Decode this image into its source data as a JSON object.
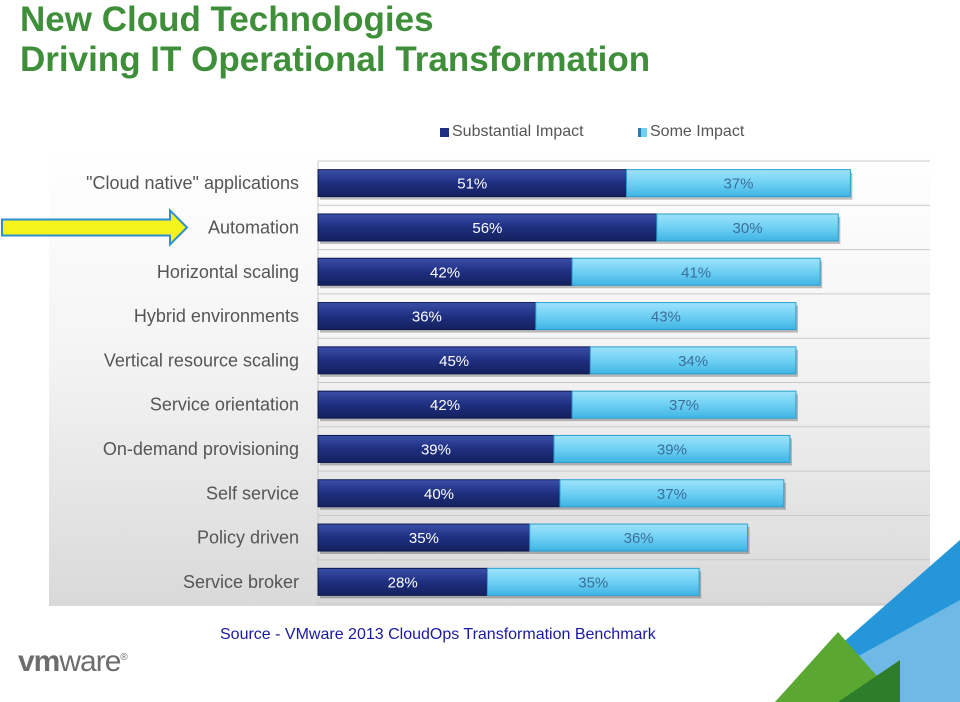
{
  "title": {
    "line1": "New Cloud Technologies",
    "line2": "Driving IT Operational Transformation"
  },
  "legend": {
    "substantial": "Substantial Impact",
    "some": "Some Impact"
  },
  "colors": {
    "title": "#3f8f3a",
    "substantial": "#1f2f80",
    "some": "#6fd0f4",
    "arrow": "#f4f31b",
    "arrow_border": "#2c8fd0",
    "grid": "#c9c9c9"
  },
  "source": "Source - VMware 2013 CloudOps Transformation Benchmark",
  "logo": "vmware",
  "chart_data": {
    "type": "bar",
    "orientation": "horizontal",
    "stacked": true,
    "categories": [
      "\"Cloud native\" applications",
      "Automation",
      "Horizontal scaling",
      "Hybrid environments",
      "Vertical resource scaling",
      "Service orientation",
      "On-demand provisioning",
      "Self service",
      "Policy driven",
      "Service broker"
    ],
    "series": [
      {
        "name": "Substantial Impact",
        "values": [
          51,
          56,
          42,
          36,
          45,
          42,
          39,
          40,
          35,
          28
        ],
        "labels": [
          "51%",
          "56%",
          "42%",
          "36%",
          "45%",
          "42%",
          "39%",
          "40%",
          "35%",
          "28%"
        ]
      },
      {
        "name": "Some Impact",
        "values": [
          37,
          30,
          41,
          43,
          34,
          37,
          39,
          37,
          36,
          35
        ],
        "labels": [
          "37%",
          "30%",
          "41%",
          "43%",
          "34%",
          "37%",
          "39%",
          "37%",
          "36%",
          "35%"
        ]
      }
    ],
    "xlim": [
      0,
      100
    ],
    "legend_position": "top",
    "grid": true,
    "highlighted_category": "Automation"
  }
}
